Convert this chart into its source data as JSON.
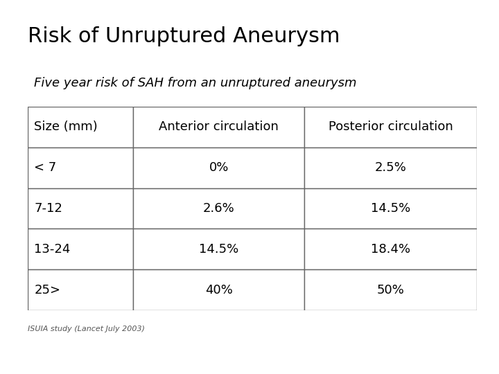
{
  "title": "Risk of Unruptured Aneurysm",
  "subtitle": "Five year risk of SAH from an unruptured aneurysm",
  "subtitle_bg": "#6699CC",
  "subtitle_text_color": "#000000",
  "col_headers": [
    "Size (mm)",
    "Anterior circulation",
    "Posterior circulation"
  ],
  "rows": [
    [
      "< 7",
      "0%",
      "2.5%"
    ],
    [
      "7-12",
      "2.6%",
      "14.5%"
    ],
    [
      "13-24",
      "14.5%",
      "18.4%"
    ],
    [
      "25>",
      "40%",
      "50%"
    ]
  ],
  "footnote": "ISUIA study (Lancet July 2003)",
  "bg_color": "#ffffff",
  "title_fontsize": 22,
  "subtitle_fontsize": 13,
  "table_fontsize": 13,
  "footnote_fontsize": 8,
  "subtitle_bg_color": "#6699CC"
}
